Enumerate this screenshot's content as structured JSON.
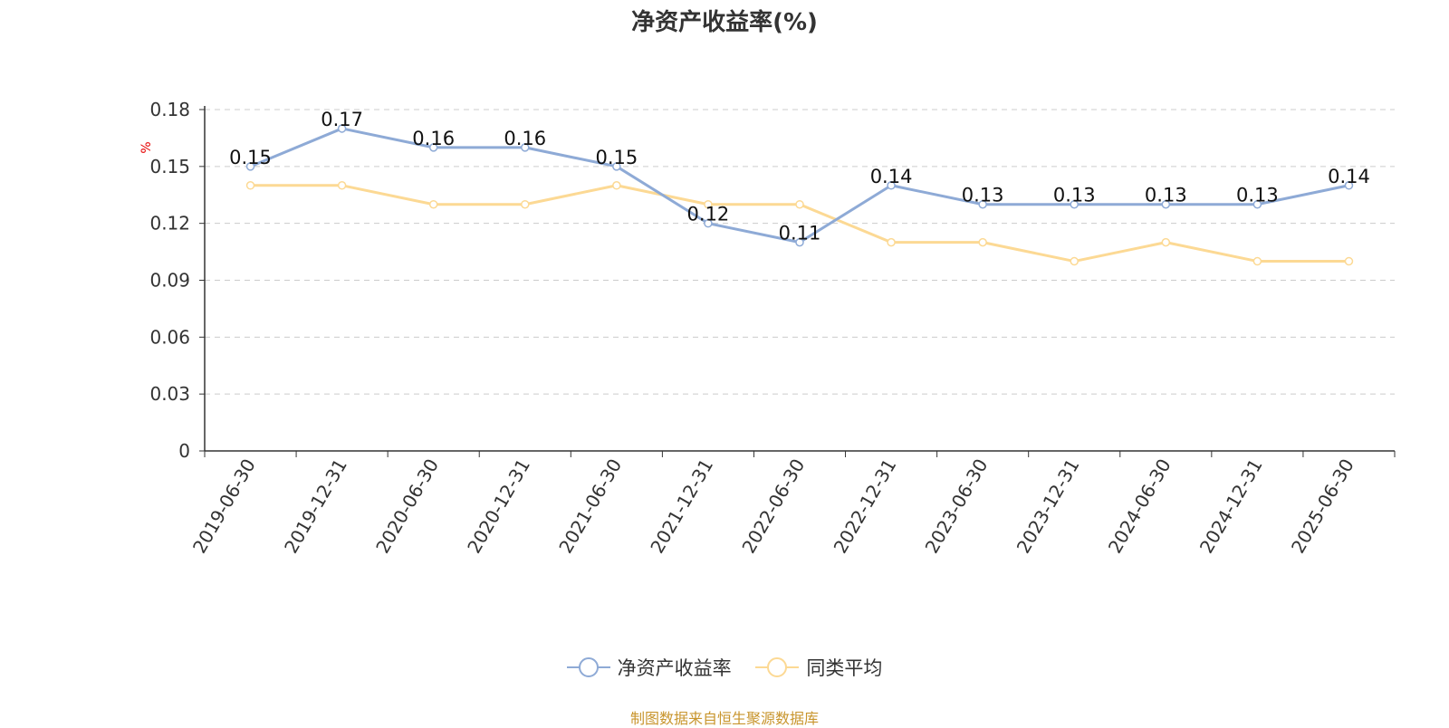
{
  "title": "净资产收益率(%)",
  "source": "制图数据来自恒生聚源数据库",
  "chart_data": {
    "type": "line",
    "ylabel": "%",
    "ylim": [
      0,
      0.18
    ],
    "yticks": [
      "0",
      "0.03",
      "0.06",
      "0.09",
      "0.12",
      "0.15",
      "0.18"
    ],
    "grid": true,
    "legend_position": "bottom",
    "categories": [
      "2019-06-30",
      "2019-12-31",
      "2020-06-30",
      "2020-12-31",
      "2021-06-30",
      "2021-12-31",
      "2022-06-30",
      "2022-12-31",
      "2023-06-30",
      "2023-12-31",
      "2024-06-30",
      "2024-12-31",
      "2025-06-30"
    ],
    "series": [
      {
        "name": "净资产收益率",
        "color": "#8eaad6",
        "show_labels": true,
        "values": [
          0.15,
          0.17,
          0.16,
          0.16,
          0.15,
          0.12,
          0.11,
          0.14,
          0.13,
          0.13,
          0.13,
          0.13,
          0.14
        ]
      },
      {
        "name": "同类平均",
        "color": "#fcd994",
        "show_labels": false,
        "values": [
          0.14,
          0.14,
          0.13,
          0.13,
          0.14,
          0.13,
          0.13,
          0.11,
          0.11,
          0.1,
          0.11,
          0.1,
          0.1
        ]
      }
    ]
  }
}
